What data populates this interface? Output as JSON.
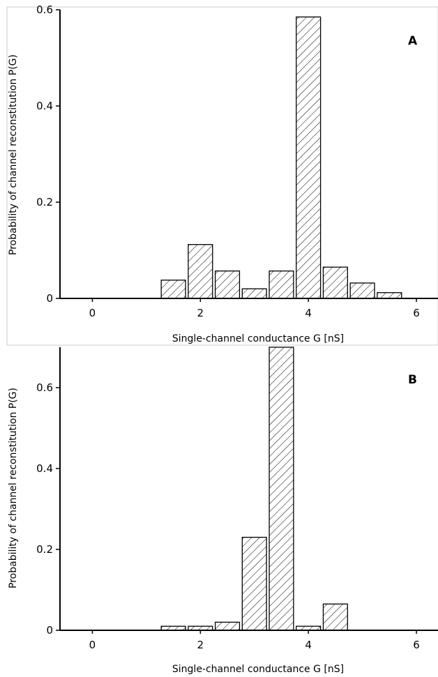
{
  "chart_data": [
    {
      "type": "bar",
      "panel_label": "A",
      "xlabel": "Single-channel conductance G [nS]",
      "ylabel": "Probability of channel reconstitution P(G)",
      "xlim": [
        -0.6,
        6.4
      ],
      "ylim": [
        0,
        0.6
      ],
      "xticks": [
        0,
        2,
        4,
        6
      ],
      "yticks": [
        0,
        0.2,
        0.4,
        0.6
      ],
      "ytick_labels": [
        "0",
        "0.2",
        "0.4",
        "0.6"
      ],
      "bar_width": 0.45,
      "x": [
        1.5,
        2.0,
        2.5,
        3.0,
        3.5,
        4.0,
        4.5,
        5.0,
        5.5
      ],
      "values": [
        0.038,
        0.112,
        0.057,
        0.02,
        0.057,
        0.585,
        0.065,
        0.032,
        0.012
      ],
      "hatch": "diagonal",
      "grid": false
    },
    {
      "type": "bar",
      "panel_label": "B",
      "xlabel": "Single-channel conductance G [nS]",
      "ylabel": "Probability of channel reconstitution P(G)",
      "xlim": [
        -0.6,
        6.4
      ],
      "ylim": [
        0,
        0.7
      ],
      "xticks": [
        0,
        2,
        4,
        6
      ],
      "yticks": [
        0,
        0.2,
        0.4,
        0.6
      ],
      "ytick_labels": [
        "0",
        "0.2",
        "0.4",
        "0.6"
      ],
      "bar_width": 0.45,
      "x": [
        1.5,
        2.0,
        2.5,
        3.0,
        3.5,
        4.0,
        4.5
      ],
      "values": [
        0.01,
        0.01,
        0.02,
        0.23,
        0.7,
        0.01,
        0.065
      ],
      "hatch": "diagonal",
      "grid": false
    }
  ]
}
